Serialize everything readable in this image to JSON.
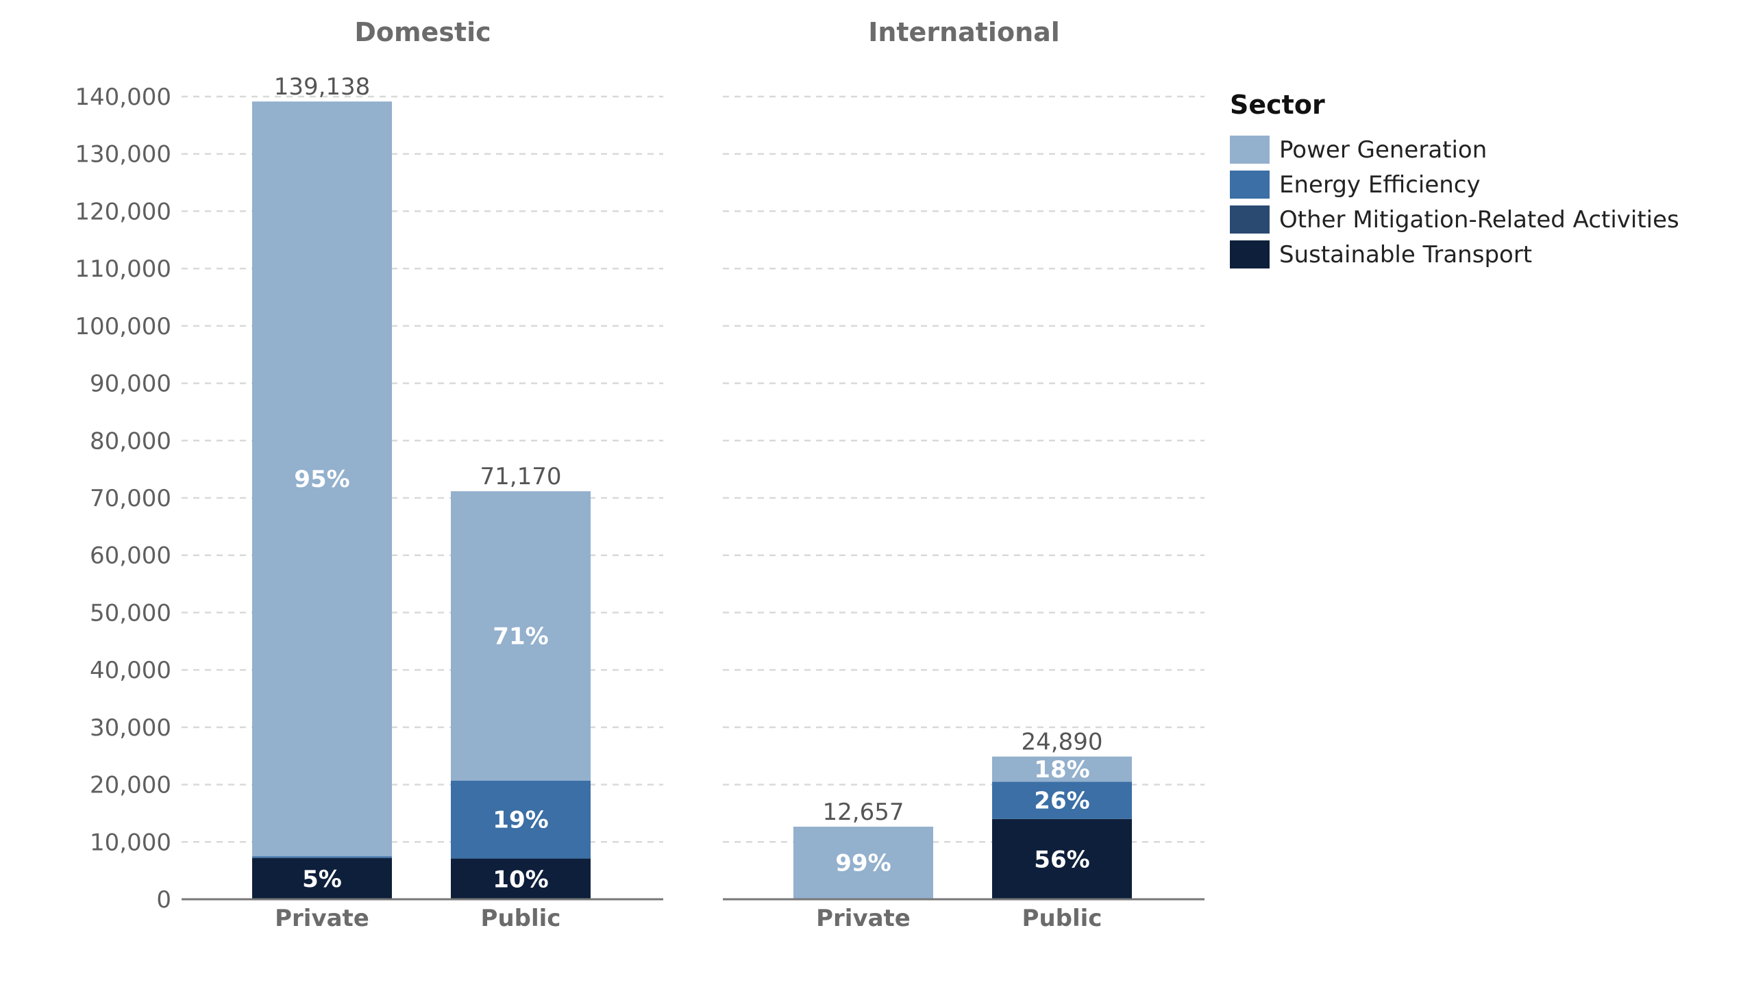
{
  "chart_data": {
    "type": "bar",
    "stacked": true,
    "ylim": [
      0,
      140000
    ],
    "yticks": [
      0,
      10000,
      20000,
      30000,
      40000,
      50000,
      60000,
      70000,
      80000,
      90000,
      100000,
      110000,
      120000,
      130000,
      140000
    ],
    "ytick_labels": [
      "0",
      "10,000",
      "20,000",
      "30,000",
      "40,000",
      "50,000",
      "60,000",
      "70,000",
      "80,000",
      "90,000",
      "100,000",
      "110,000",
      "120,000",
      "130,000",
      "140,000"
    ],
    "grid": true,
    "legend": {
      "title": "Sector",
      "placement": "right",
      "entries": [
        {
          "name": "Power Generation",
          "color": "#93b0cd"
        },
        {
          "name": "Energy Efficiency",
          "color": "#3b6fa5"
        },
        {
          "name": "Other Mitigation-Related Activities",
          "color": "#2b4a72"
        },
        {
          "name": "Sustainable Transport",
          "color": "#0e1f3b"
        }
      ]
    },
    "panels": [
      {
        "title": "Domestic",
        "categories": [
          "Private",
          "Public"
        ],
        "totals": [
          139138,
          71170
        ],
        "total_labels": [
          "139,138",
          "71,170"
        ],
        "segments": [
          [
            {
              "sector": "Sustainable Transport",
              "value": 7200,
              "label": "5%"
            },
            {
              "sector": "Energy Efficiency",
              "value": 300,
              "label": ""
            },
            {
              "sector": "Power Generation",
              "value": 131638,
              "label": "95%"
            }
          ],
          [
            {
              "sector": "Sustainable Transport",
              "value": 7100,
              "label": "10%"
            },
            {
              "sector": "Energy Efficiency",
              "value": 13600,
              "label": "19%"
            },
            {
              "sector": "Power Generation",
              "value": 50470,
              "label": "71%"
            }
          ]
        ]
      },
      {
        "title": "International",
        "categories": [
          "Private",
          "Public"
        ],
        "totals": [
          12657,
          24890
        ],
        "total_labels": [
          "12,657",
          "24,890"
        ],
        "segments": [
          [
            {
              "sector": "Sustainable Transport",
              "value": 150,
              "label": ""
            },
            {
              "sector": "Power Generation",
              "value": 12507,
              "label": "99%"
            }
          ],
          [
            {
              "sector": "Sustainable Transport",
              "value": 14000,
              "label": "56%"
            },
            {
              "sector": "Energy Efficiency",
              "value": 6500,
              "label": "26%"
            },
            {
              "sector": "Power Generation",
              "value": 4390,
              "label": "18%"
            }
          ]
        ]
      }
    ]
  }
}
